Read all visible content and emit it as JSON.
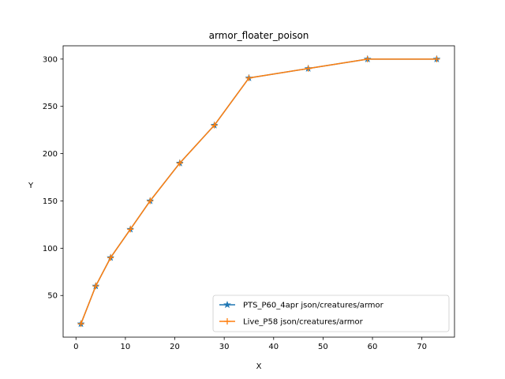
{
  "chart_data": {
    "type": "line",
    "title": "armor_floater_poison",
    "xlabel": "X",
    "ylabel": "Y",
    "xlim": [
      -2.6,
      76.6
    ],
    "ylim": [
      5.95,
      314.05
    ],
    "xticks": [
      0,
      10,
      20,
      30,
      40,
      50,
      60,
      70
    ],
    "yticks": [
      50,
      100,
      150,
      200,
      250,
      300
    ],
    "grid": false,
    "legend_position": "lower-right",
    "series": [
      {
        "name": "PTS_P60_4apr json/creatures/armor",
        "color": "#1f77b4",
        "marker": "star",
        "x": [
          1,
          4,
          7,
          11,
          15,
          21,
          28,
          35,
          47,
          59,
          73
        ],
        "y": [
          20,
          60,
          90,
          120,
          150,
          190,
          230,
          280,
          290,
          300,
          300
        ]
      },
      {
        "name": "Live_P58 json/creatures/armor",
        "color": "#ff7f0e",
        "marker": "plus",
        "x": [
          1,
          4,
          7,
          11,
          15,
          21,
          28,
          35,
          47,
          59,
          73
        ],
        "y": [
          20,
          60,
          90,
          120,
          150,
          190,
          230,
          280,
          290,
          300,
          300
        ]
      }
    ]
  }
}
